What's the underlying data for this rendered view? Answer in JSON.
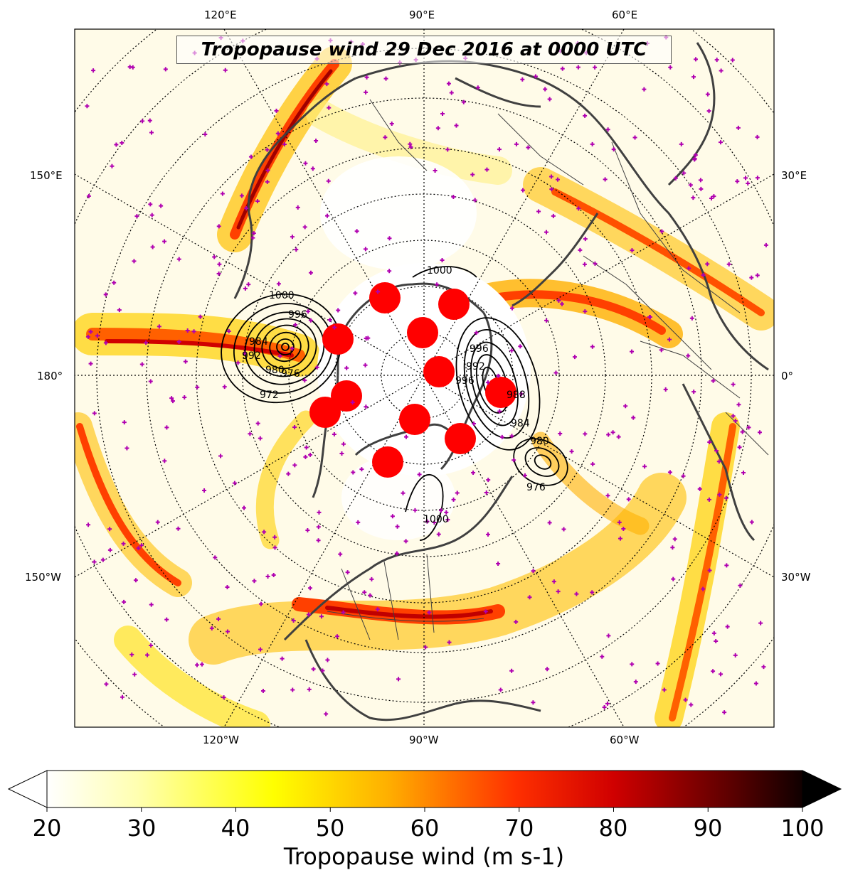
{
  "title": "Tropopause wind 29 Dec 2016 at 0000 UTC",
  "longitude_labels": {
    "top": [
      "120°E",
      "90°E",
      "60°E"
    ],
    "left": [
      "150°E",
      "180°",
      "150°W"
    ],
    "right": [
      "30°E",
      "0°",
      "30°W"
    ],
    "bottom": [
      "120°W",
      "90°W",
      "60°W"
    ]
  },
  "pressure_contour_labels": [
    "1000",
    "996",
    "992",
    "984",
    "980",
    "976",
    "972",
    "1000",
    "996",
    "992",
    "988",
    "984",
    "980",
    "976",
    "1000",
    "996"
  ],
  "colorbar": {
    "label": "Tropopause wind (m s-1)",
    "ticks": [
      "20",
      "30",
      "40",
      "50",
      "60",
      "70",
      "80",
      "90",
      "100"
    ],
    "min": 20,
    "max": 100,
    "extend": "both",
    "colormap": "hot_r"
  },
  "colors": {
    "marker": "#b000b0",
    "red_dots": "#ff0000",
    "coastline": "#404040"
  }
}
